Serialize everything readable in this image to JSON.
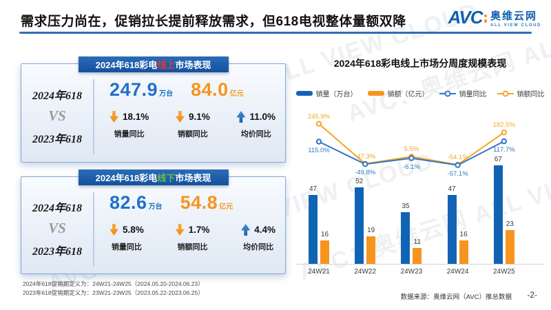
{
  "slide": {
    "title": "需求压力尚在，促销拉长提前释放需求，但618电视整体量额双降",
    "watermark": "AVC：奥维云网 ALL VIEW CLOUD",
    "footnotes": [
      "2024年618促销期定义为：24W21-24W25（2024.05.20-2024.06.23）",
      "2023年618促销期定义为：23W21-23W25（2023.05.22-2023.06.25）"
    ],
    "source": "数据来源：奥维云网（AVC）推总数据",
    "page_number": "-2-"
  },
  "logo": {
    "abbr": "AVC",
    "name": "奥维云网",
    "tagline": "ALL VIEW CLOUD"
  },
  "colors": {
    "header_blue": "#15519c",
    "bar_blue": "#1164b4",
    "bar_orange": "#f7941d",
    "line_blue": "#2e75c6",
    "line_orange": "#f5a623",
    "online_red": "#e8372c",
    "offline_green": "#6cbe45",
    "value_blue": "#2171c7",
    "value_orange": "#f7941d"
  },
  "panels": {
    "online": {
      "header_prefix": "2024年618彩电",
      "header_channel": "线上",
      "header_suffix": "市场表现",
      "year_2024": "2024年618",
      "vs": "VS",
      "year_2023": "2023年618",
      "volume_value": "247.9",
      "volume_unit": "万台",
      "amount_value": "84.0",
      "amount_unit": "亿元",
      "stats": [
        {
          "direction": "down",
          "value": "18.1%",
          "label": "销量同比"
        },
        {
          "direction": "down",
          "value": "9.1%",
          "label": "销额同比"
        },
        {
          "direction": "up",
          "value": "11.0%",
          "label": "均价同比"
        }
      ]
    },
    "offline": {
      "header_prefix": "2024年618彩电",
      "header_channel": "线下",
      "header_suffix": "市场表现",
      "year_2024": "2024年618",
      "vs": "VS",
      "year_2023": "2023年618",
      "volume_value": "82.6",
      "volume_unit": "万台",
      "amount_value": "54.8",
      "amount_unit": "亿元",
      "stats": [
        {
          "direction": "down",
          "value": "5.8%",
          "label": "销量同比"
        },
        {
          "direction": "down",
          "value": "1.7%",
          "label": "销额同比"
        },
        {
          "direction": "up",
          "value": "4.4%",
          "label": "均价同比"
        }
      ]
    }
  },
  "chart_data": {
    "type": "bar",
    "subtype": "bar+line combo",
    "title": "2024年618彩电线上市场分周度规模表现",
    "categories": [
      "24W21",
      "24W22",
      "24W23",
      "24W24",
      "24W25"
    ],
    "series": [
      {
        "name": "销量（万台）",
        "type": "bar",
        "color": "#1164b4",
        "values": [
          47,
          52,
          35,
          47,
          67
        ]
      },
      {
        "name": "销额（亿元）",
        "type": "bar",
        "color": "#f7941d",
        "values": [
          16,
          19,
          11,
          16,
          23
        ]
      },
      {
        "name": "销量同比",
        "type": "line",
        "color": "#2e75c6",
        "unit": "%",
        "values": [
          115.0,
          -49.8,
          -6.1,
          -57.1,
          117.7
        ]
      },
      {
        "name": "销额同比",
        "type": "line",
        "color": "#f5a623",
        "unit": "%",
        "values": [
          245.9,
          -47.3,
          5.5,
          -54.1,
          182.5
        ]
      }
    ],
    "legend_position": "top",
    "grid": false,
    "value_labels": true
  }
}
